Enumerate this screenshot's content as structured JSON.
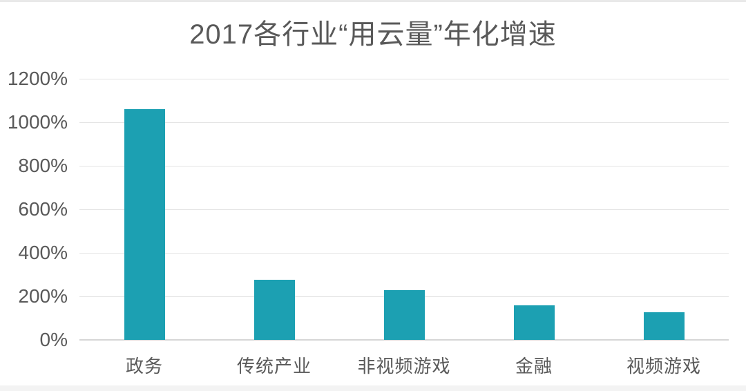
{
  "title": "2017各行业“用云量”年化增速",
  "colors": {
    "bar": "#1CA0B2",
    "grid": "#e3e3e3",
    "baseline": "#d6d6d6",
    "text": "#595959",
    "background": "#ffffff"
  },
  "chart_data": {
    "type": "bar",
    "title": "2017各行业“用云量”年化增速",
    "categories": [
      "政务",
      "传统产业",
      "非视频游戏",
      "金融",
      "视频游戏"
    ],
    "values": [
      1060,
      275,
      230,
      160,
      127
    ],
    "xlabel": "",
    "ylabel": "",
    "ylim": [
      0,
      1200
    ],
    "yticks": [
      0,
      200,
      400,
      600,
      800,
      1000,
      1200
    ],
    "ytick_suffix": "%",
    "grid": "horizontal",
    "legend": "none",
    "bar_color": "#1CA0B2"
  }
}
